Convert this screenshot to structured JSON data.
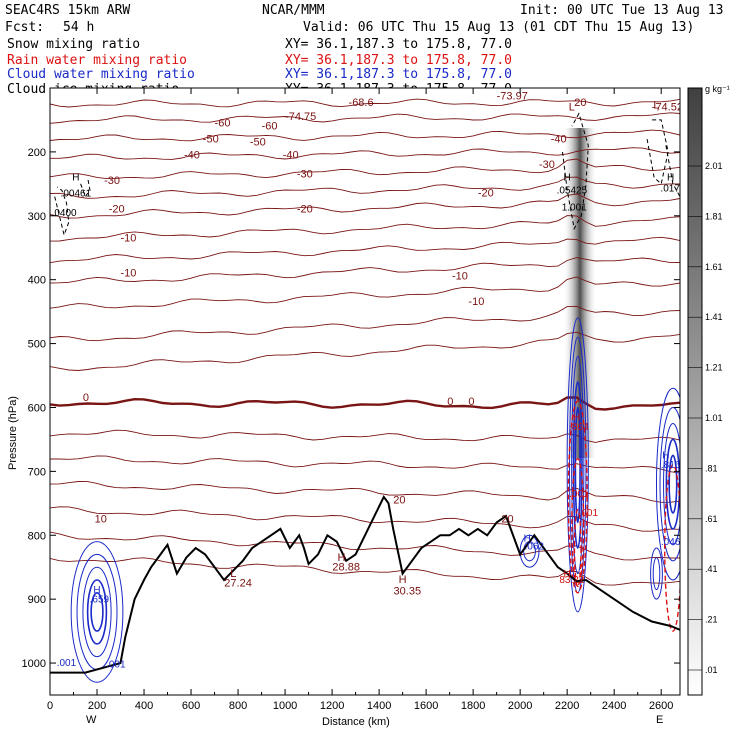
{
  "header": {
    "model": "SEAC4RS 15km ARW",
    "org": "NCAR/MMM",
    "init": "Init: 00 UTC Tue 13 Aug 13",
    "fcst_label": "Fcst:",
    "fcst_value": "54 h",
    "valid": "Valid: 06 UTC Thu 15 Aug 13 (01 CDT Thu 15 Aug 13)",
    "fields": [
      {
        "name": "Snow mixing ratio",
        "xy": "XY=  36.1,187.3 to 175.8, 77.0",
        "color": "#000000"
      },
      {
        "name": "Rain water mixing ratio",
        "xy": "XY=  36.1,187.3 to 175.8, 77.0",
        "color": "#dd1111"
      },
      {
        "name": "Cloud water mixing ratio",
        "xy": "XY=  36.1,187.3 to 175.8, 77.0",
        "color": "#1a2ac8"
      },
      {
        "name": "Cloud ice mixing ratio",
        "xy": "XY=  36.1,187.3 to 175.8, 77.0",
        "color": "#000000"
      }
    ]
  },
  "colorbar": {
    "unit": "g kg⁻¹",
    "labels": [
      "2.01",
      "1.81",
      "1.61",
      "1.41",
      "1.21",
      "1.01",
      ".81",
      ".61",
      ".41",
      ".21",
      ".01"
    ]
  },
  "chart_data": {
    "type": "cross-section",
    "xlabel": "Distance (km)",
    "ylabel": "Pressure (hPa)",
    "x_ticks": [
      0,
      200,
      400,
      600,
      800,
      1000,
      1200,
      1400,
      1600,
      1800,
      2000,
      2200,
      2400,
      2600
    ],
    "y_ticks": [
      200,
      300,
      400,
      500,
      600,
      700,
      800,
      900,
      1000
    ],
    "xlim": [
      0,
      2680
    ],
    "ylim": [
      1050,
      100
    ],
    "left_end": "W",
    "right_end": "E",
    "temperature_contour_labels": [
      "-68.6",
      "-60",
      "-60",
      "-50",
      "-50",
      "-40",
      "-40",
      "-40",
      "-30",
      "-30",
      "-30",
      "-20",
      "-20",
      "-20",
      "-10",
      "-10",
      "-10",
      "-10",
      "0",
      "0",
      "0",
      "10",
      "20",
      "20",
      "20",
      "-74.52",
      "-73.97",
      "-74.75"
    ],
    "extrema_labels": [
      {
        "text": "H",
        "x": 110,
        "p": 245
      },
      {
        "text": ".00461",
        "x": 110,
        "p": 270
      },
      {
        "text": ".0400",
        "x": 60,
        "p": 300
      },
      {
        "text": "H",
        "x": 2200,
        "p": 245
      },
      {
        "text": ".05425",
        "x": 2220,
        "p": 265
      },
      {
        "text": "1.001",
        "x": 2230,
        "p": 292
      },
      {
        "text": "H",
        "x": 2640,
        "p": 245
      },
      {
        "text": ".0170",
        "x": 2650,
        "p": 262
      },
      {
        "text": "H",
        "x": 200,
        "p": 890
      },
      {
        "text": ".659",
        "x": 210,
        "p": 905
      },
      {
        "text": ".001",
        "x": 70,
        "p": 1005
      },
      {
        "text": ".001",
        "x": 280,
        "p": 1007
      },
      {
        "text": "H",
        "x": 2030,
        "p": 810
      },
      {
        "text": ".062",
        "x": 2060,
        "p": 822
      },
      {
        "text": "H",
        "x": 2620,
        "p": 680
      },
      {
        "text": ".816",
        "x": 2640,
        "p": 695
      },
      {
        "text": ".046",
        "x": 2640,
        "p": 815
      },
      {
        "text": "H",
        "x": 2240,
        "p": 620
      },
      {
        "text": ".864",
        "x": 2250,
        "p": 635
      },
      {
        "text": ".001",
        "x": 2250,
        "p": 740
      },
      {
        "text": ".001",
        "x": 2290,
        "p": 770
      },
      {
        "text": "H",
        "x": 2200,
        "p": 865
      },
      {
        "text": "83.22",
        "x": 2220,
        "p": 875
      }
    ],
    "terrain_temp_labels": [
      {
        "text": "L",
        "x": 780,
        "p": 865
      },
      {
        "text": "27.24",
        "x": 800,
        "p": 880
      },
      {
        "text": "H",
        "x": 1240,
        "p": 840
      },
      {
        "text": "28.88",
        "x": 1260,
        "p": 855
      },
      {
        "text": "H",
        "x": 1500,
        "p": 875
      },
      {
        "text": "30.35",
        "x": 1520,
        "p": 893
      },
      {
        "text": "L",
        "x": 2220,
        "p": 135
      },
      {
        "text": "L",
        "x": 2580,
        "p": 132
      }
    ]
  }
}
